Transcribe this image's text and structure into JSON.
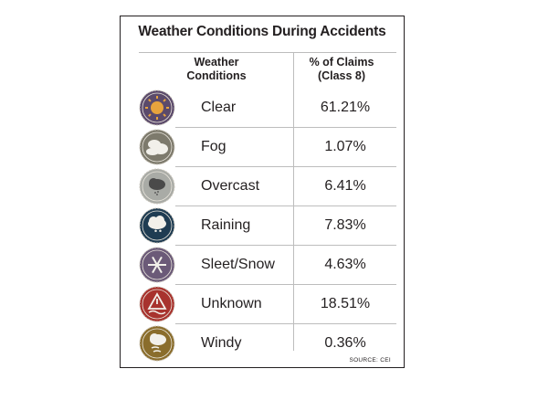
{
  "chart_data": {
    "type": "table",
    "title": "Weather Conditions During Accidents",
    "columns": [
      "Weather\nConditions",
      "% of Claims\n(Class 8)"
    ],
    "column_lines": [
      [
        "Weather",
        "Conditions"
      ],
      [
        "% of Claims",
        "(Class 8)"
      ]
    ],
    "rows": [
      {
        "condition": "Clear",
        "value": "61.21%",
        "icon": "sun-icon",
        "color": "#5b4a6b"
      },
      {
        "condition": "Fog",
        "value": "1.07%",
        "icon": "fog-icon",
        "color": "#7d7a6c"
      },
      {
        "condition": "Overcast",
        "value": "6.41%",
        "icon": "overcast-icon",
        "color": "#a9aba6"
      },
      {
        "condition": "Raining",
        "value": "7.83%",
        "icon": "rain-cloud-icon",
        "color": "#1f3c52"
      },
      {
        "condition": "Sleet/Snow",
        "value": "4.63%",
        "icon": "snowflake-icon",
        "color": "#6b5a78"
      },
      {
        "condition": "Unknown",
        "value": "18.51%",
        "icon": "warning-icon",
        "color": "#a8332e"
      },
      {
        "condition": "Windy",
        "value": "0.36%",
        "icon": "wind-icon",
        "color": "#8a6d2c"
      }
    ],
    "source": "SOURCE: CEI"
  }
}
